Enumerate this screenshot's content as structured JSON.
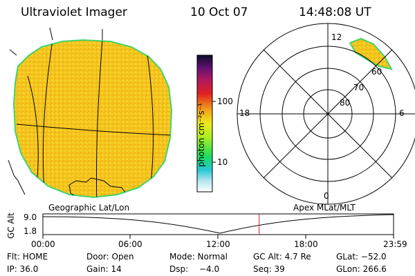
{
  "header": {
    "instrument": "Ultraviolet Imager",
    "date": "10 Oct 07",
    "time": "14:48:08 UT"
  },
  "colorbar": {
    "unit_label": "photon cm⁻²s⁻¹",
    "tick_100": "100",
    "tick_10": "10"
  },
  "polar_plot": {
    "hour_12": "12",
    "hour_18": "18",
    "hour_6": "6",
    "hour_0": "0",
    "lat_60": "60",
    "lat_70": "70",
    "lat_80": "80"
  },
  "timeline": {
    "left_label": "Geographic Lat/Lon",
    "right_label": "Apex MLat/MLT",
    "axis_title": "GC Alt",
    "y_top": "9.0",
    "y_bottom": "1.8",
    "x_ticks": [
      "00:00",
      "06:00",
      "12:00",
      "18:00",
      "23:59"
    ],
    "current_time_fraction": 0.6167
  },
  "status": {
    "filter": "Flt: HOME",
    "door": "Door: Open",
    "mode": "Mode: Normal",
    "gc_alt": "GC Alt: 4.7 Re",
    "glat": "GLat: −52.0",
    "ip": "IP: 36.0",
    "gain": "Gain: 14",
    "dsp_label": "Dsp:",
    "dsp_value": "−4.0",
    "seq": "Seq: 39",
    "glon": "GLon: 266.6"
  },
  "colors": {
    "image_fill": "#f5c81e",
    "limb": "#3fd46a",
    "marker": "#cc2222"
  }
}
